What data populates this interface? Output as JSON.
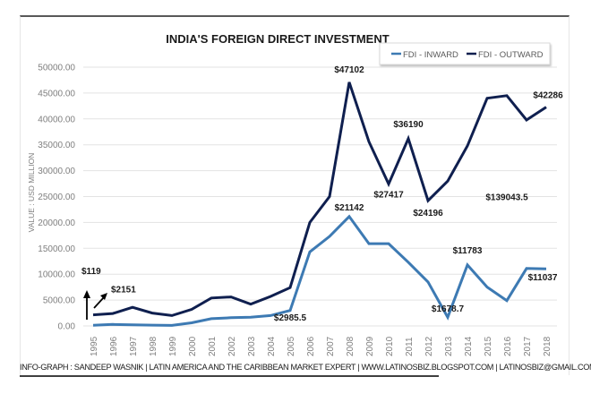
{
  "footer": {
    "text": "INFO-GRAPH : SANDEEP WASNIK | LATIN AMERICA AND THE CARIBBEAN MARKET EXPERT | WWW.LATINOSBIZ.BLOGSPOT.COM | LATINOSBIZ@GMAIL.COM"
  },
  "chart_data": {
    "type": "line",
    "title": "INDIA'S FOREIGN DIRECT INVESTMENT",
    "xlabel": "",
    "ylabel": "VALUE : USD MILLION",
    "ylim": [
      0,
      50000
    ],
    "y_ticks": [
      "0.00",
      "5000.00",
      "10000.00",
      "15000.00",
      "20000.00",
      "25000.00",
      "30000.00",
      "35000.00",
      "40000.00",
      "45000.00",
      "50000.00"
    ],
    "y_tick_values": [
      0,
      5000,
      10000,
      15000,
      20000,
      25000,
      30000,
      35000,
      40000,
      45000,
      50000
    ],
    "grid": true,
    "legend_position": "top-right",
    "x": [
      "1995",
      "1996",
      "1997",
      "1998",
      "1999",
      "2000",
      "2001",
      "2002",
      "2003",
      "2004",
      "2005",
      "2006",
      "2007",
      "2008",
      "2009",
      "2010",
      "2011",
      "2012",
      "2013",
      "2014",
      "2015",
      "2016",
      "2017",
      "2018"
    ],
    "series": [
      {
        "name": "FDI - INWARD",
        "color": "#3d7ab3",
        "values": [
          119,
          300,
          200,
          150,
          100,
          600,
          1400,
          1600,
          1700,
          2000,
          2985.5,
          14300,
          17300,
          21142,
          15900,
          15900,
          12300,
          8500,
          1678.7,
          11783,
          7500,
          4900,
          11100,
          11037
        ]
      },
      {
        "name": "FDI - OUTWARD",
        "color": "#0f1f4f",
        "values": [
          2151,
          2400,
          3600,
          2500,
          2000,
          3200,
          5400,
          5600,
          4200,
          5700,
          7400,
          20000,
          25000,
          47102,
          35600,
          27417,
          36190,
          24196,
          28000,
          34800,
          44000,
          44500,
          39800,
          42286
        ]
      }
    ],
    "annotations": [
      {
        "text": "$119",
        "year": "1995",
        "value": 10000,
        "note": "points via vertical arrow to 1995 inward"
      },
      {
        "text": "$2151",
        "year": "1996",
        "value": 6500,
        "note": "points via diagonal arrow to 1995 outward"
      },
      {
        "text": "$2985.5",
        "year": "2005",
        "value": 1000
      },
      {
        "text": "$21142",
        "year": "2008",
        "value": 22300
      },
      {
        "text": "$47102",
        "year": "2008",
        "value": 49000
      },
      {
        "text": "$27417",
        "year": "2010",
        "value": 24800
      },
      {
        "text": "$36190",
        "year": "2011",
        "value": 38400
      },
      {
        "text": "$24196",
        "year": "2012",
        "value": 21300
      },
      {
        "text": "$1678.7",
        "year": "2013",
        "value": 2800
      },
      {
        "text": "$11783",
        "year": "2014",
        "value": 14000
      },
      {
        "text": "$139043.5",
        "year": "2016",
        "value": 24300
      },
      {
        "text": "$42286",
        "year": "2018",
        "value": 44000
      },
      {
        "text": "$11037",
        "year": "2018",
        "value": 8800
      }
    ]
  }
}
